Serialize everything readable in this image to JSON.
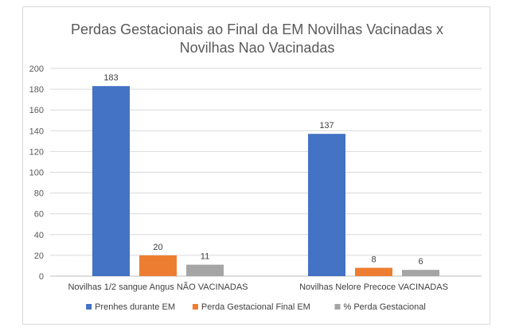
{
  "chart_data": {
    "type": "bar",
    "title_lines": [
      "Perdas Gestacionais ao Final da EM Novilhas Vacinadas x",
      "Novilhas Nao Vacinadas"
    ],
    "categories": [
      "Novilhas 1/2 sangue Angus NÃO VACINADAS",
      "Novilhas Nelore Precoce VACINADAS"
    ],
    "series": [
      {
        "name": "Prenhes durante EM",
        "values": [
          183,
          137
        ],
        "color": "#4472c4"
      },
      {
        "name": "Perda Gestacional Final EM",
        "values": [
          20,
          8
        ],
        "color": "#ed7d31"
      },
      {
        "name": "% Perda Gestacional",
        "values": [
          11,
          6
        ],
        "color": "#a5a5a5"
      }
    ],
    "ylim": [
      0,
      200
    ],
    "yticks": [
      0,
      20,
      40,
      60,
      80,
      100,
      120,
      140,
      160,
      180,
      200
    ],
    "grid": true,
    "legend_position": "bottom",
    "data_labels": true
  }
}
